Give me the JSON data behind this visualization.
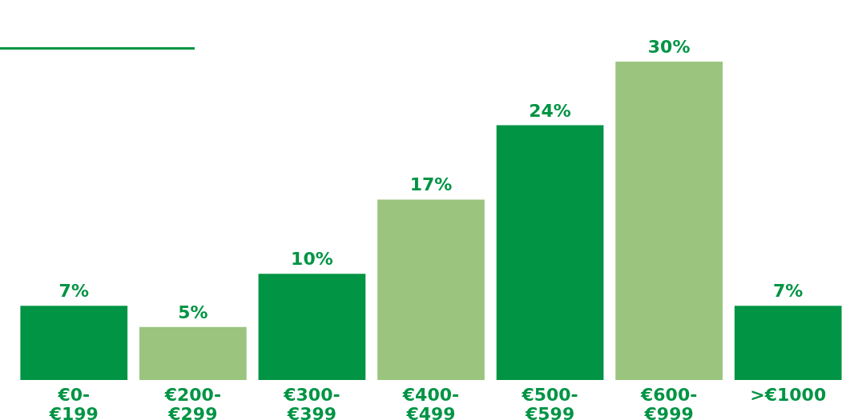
{
  "chart_data": {
    "type": "bar",
    "categories": [
      "€0-€199",
      "€200-€299",
      "€300-€399",
      "€400-€499",
      "€500-€599",
      "€600-€999",
      ">€1000"
    ],
    "values": [
      7,
      5,
      10,
      17,
      24,
      30,
      7
    ],
    "value_labels": [
      "7%",
      "5%",
      "10%",
      "17%",
      "24%",
      "30%",
      "7%"
    ],
    "colors": [
      "#009444",
      "#9bc47f",
      "#009444",
      "#9bc47f",
      "#009444",
      "#9bc47f",
      "#009444"
    ]
  }
}
